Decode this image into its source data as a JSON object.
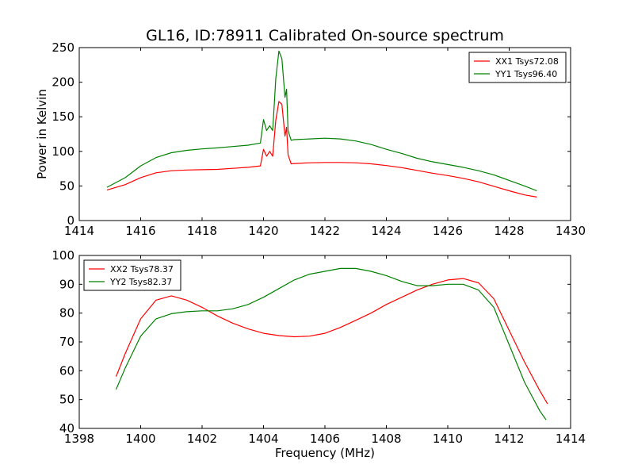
{
  "chart_data": [
    {
      "type": "line",
      "title": "GL16, ID:78911 Calibrated On-source spectrum",
      "xlabel": "",
      "ylabel": "Power in Kelvin",
      "xlim": [
        1414,
        1430
      ],
      "ylim": [
        0,
        250
      ],
      "xticks": [
        1414,
        1416,
        1418,
        1420,
        1422,
        1424,
        1426,
        1428,
        1430
      ],
      "yticks": [
        0,
        50,
        100,
        150,
        200,
        250
      ],
      "legend_position": "top-right",
      "grid": false,
      "series": [
        {
          "name": "XX1 Tsys72.08",
          "color": "#ff0000",
          "x": [
            1414.9,
            1415.5,
            1416.0,
            1416.5,
            1417.0,
            1417.5,
            1418.0,
            1418.5,
            1419.0,
            1419.5,
            1419.9,
            1420.0,
            1420.1,
            1420.2,
            1420.3,
            1420.4,
            1420.5,
            1420.6,
            1420.7,
            1420.75,
            1420.8,
            1420.9,
            1421.0,
            1421.5,
            1422.0,
            1422.5,
            1423.0,
            1423.5,
            1424.0,
            1424.5,
            1425.0,
            1425.5,
            1426.0,
            1426.5,
            1427.0,
            1427.5,
            1428.0,
            1428.5,
            1428.9
          ],
          "values": [
            44,
            52,
            62,
            69,
            72,
            73,
            73.5,
            74,
            75.5,
            77,
            79,
            103,
            93,
            100,
            93,
            145,
            172,
            168,
            122,
            135,
            95,
            82,
            82.5,
            83.5,
            84,
            84,
            83.5,
            82,
            79.5,
            76.5,
            72.5,
            68.5,
            65,
            61,
            56,
            49.5,
            43,
            37,
            34
          ]
        },
        {
          "name": "YY1 Tsys96.40",
          "color": "#008000",
          "x": [
            1414.9,
            1415.5,
            1416.0,
            1416.5,
            1417.0,
            1417.5,
            1418.0,
            1418.5,
            1419.0,
            1419.5,
            1419.9,
            1420.0,
            1420.1,
            1420.2,
            1420.3,
            1420.4,
            1420.5,
            1420.6,
            1420.7,
            1420.75,
            1420.8,
            1420.9,
            1421.0,
            1421.5,
            1422.0,
            1422.5,
            1423.0,
            1423.5,
            1424.0,
            1424.5,
            1425.0,
            1425.5,
            1426.0,
            1426.5,
            1427.0,
            1427.5,
            1428.0,
            1428.5,
            1428.9
          ],
          "values": [
            48,
            62,
            79,
            91,
            98,
            101.5,
            103.5,
            105,
            107,
            109,
            112,
            146,
            130,
            137,
            130,
            205,
            245,
            234,
            178,
            190,
            130,
            116,
            117,
            118,
            119,
            118,
            115,
            110,
            103,
            97,
            90,
            85,
            81,
            77,
            72,
            66,
            58,
            50,
            43
          ]
        }
      ]
    },
    {
      "type": "line",
      "title": "",
      "xlabel": "Frequency (MHz)",
      "ylabel": "",
      "xlim": [
        1398,
        1414
      ],
      "ylim": [
        40,
        100
      ],
      "xticks": [
        1398,
        1400,
        1402,
        1404,
        1406,
        1408,
        1410,
        1412,
        1414
      ],
      "yticks": [
        40,
        50,
        60,
        70,
        80,
        90,
        100
      ],
      "legend_position": "top-left",
      "grid": false,
      "series": [
        {
          "name": "XX2 Tsys78.37",
          "color": "#ff0000",
          "x": [
            1399.2,
            1399.5,
            1400.0,
            1400.5,
            1401.0,
            1401.5,
            1402.0,
            1402.5,
            1403.0,
            1403.5,
            1404.0,
            1404.5,
            1405.0,
            1405.5,
            1406.0,
            1406.5,
            1407.0,
            1407.5,
            1408.0,
            1408.5,
            1409.0,
            1409.5,
            1410.0,
            1410.5,
            1411.0,
            1411.5,
            1412.0,
            1412.5,
            1413.0,
            1413.25
          ],
          "values": [
            58,
            66,
            78,
            84.5,
            86,
            84.5,
            82,
            79,
            76.5,
            74.5,
            73,
            72.2,
            71.8,
            72,
            73,
            75,
            77.5,
            80,
            83,
            85.5,
            88,
            90,
            91.5,
            92,
            90.5,
            85,
            74,
            63,
            53,
            48.5
          ]
        },
        {
          "name": "YY2 Tsys82.37",
          "color": "#008000",
          "x": [
            1399.2,
            1399.5,
            1400.0,
            1400.5,
            1401.0,
            1401.5,
            1402.0,
            1402.5,
            1403.0,
            1403.5,
            1404.0,
            1404.5,
            1405.0,
            1405.5,
            1406.0,
            1406.5,
            1407.0,
            1407.5,
            1408.0,
            1408.5,
            1409.0,
            1409.5,
            1410.0,
            1410.5,
            1411.0,
            1411.5,
            1412.0,
            1412.5,
            1413.0,
            1413.2
          ],
          "values": [
            53.5,
            61,
            72,
            78,
            79.8,
            80.5,
            80.8,
            80.8,
            81.5,
            83,
            85.5,
            88.5,
            91.5,
            93.5,
            94.5,
            95.5,
            95.5,
            94.5,
            93,
            91,
            89.5,
            89.5,
            90,
            90,
            88,
            82,
            69,
            56,
            46,
            43
          ]
        }
      ]
    }
  ]
}
